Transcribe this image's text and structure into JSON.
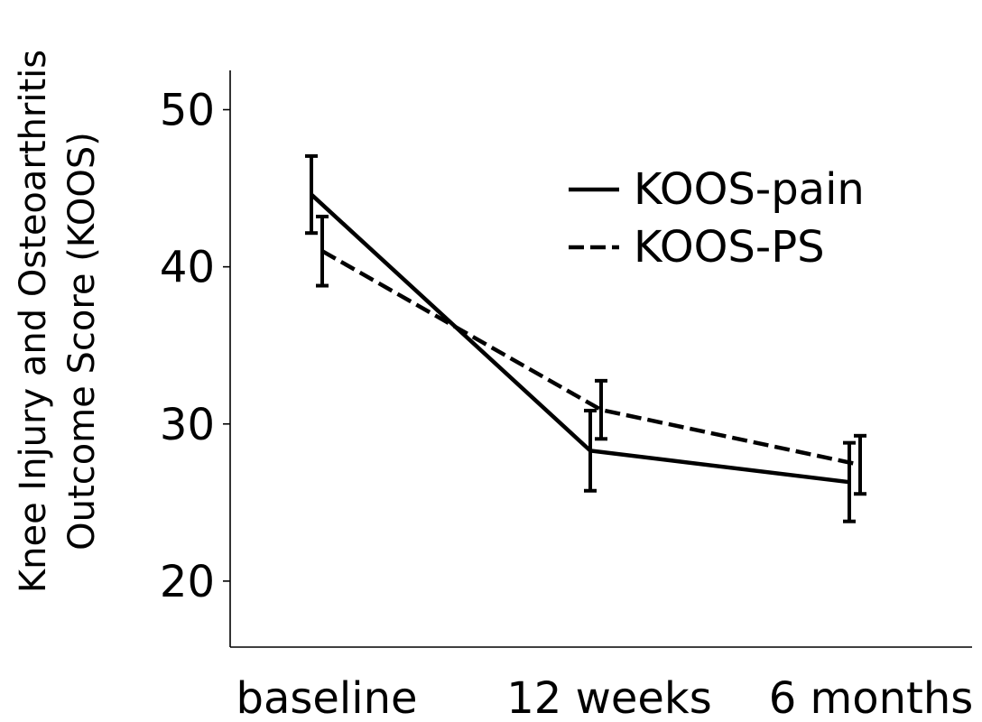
{
  "chart_data": {
    "type": "line",
    "categories": [
      "baseline",
      "12 weeks",
      "6 months"
    ],
    "ylabel_lines": [
      "Knee Injury and Osteoarthritis",
      "Outcome Score (KOOS)"
    ],
    "ylim": [
      15.8,
      52.5
    ],
    "yticks": [
      20,
      30,
      40,
      50
    ],
    "grid": false,
    "legend_position": "upper-right",
    "series": [
      {
        "name": "KOOS-pain",
        "style": "solid",
        "color": "#000000",
        "values": [
          44.6,
          28.3,
          26.3
        ],
        "errors": [
          2.45,
          2.55,
          2.5
        ]
      },
      {
        "name": "KOOS-PS",
        "style": "dashed",
        "color": "#000000",
        "values": [
          41.0,
          30.9,
          27.4
        ],
        "errors": [
          2.2,
          1.85,
          1.85
        ]
      }
    ]
  }
}
